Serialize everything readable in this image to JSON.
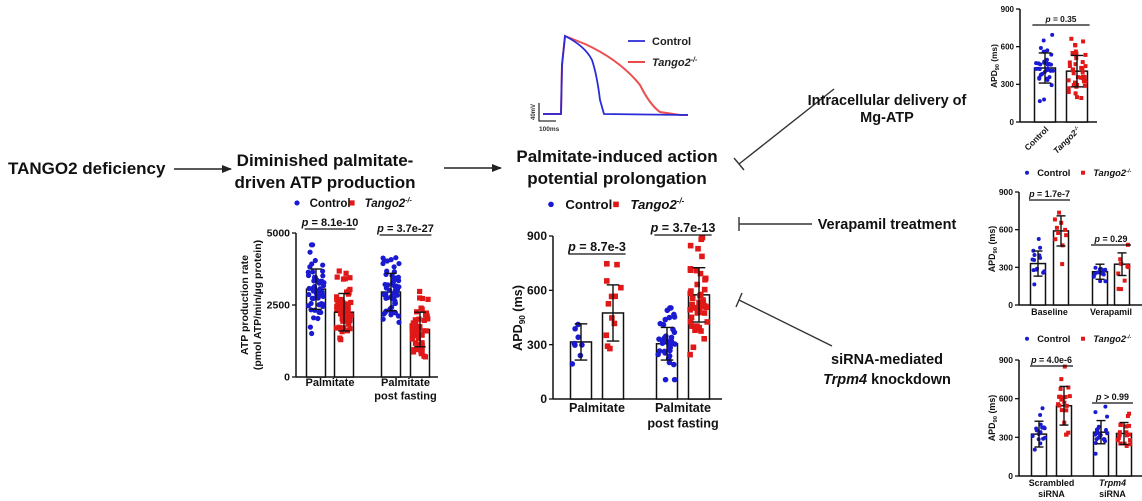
{
  "flow": {
    "step1": "TANGO2 deficiency",
    "step2_line1": "Diminished palmitate-",
    "step2_line2": "driven ATP production",
    "step3_line1": "Palmitate-induced action",
    "step3_line2": "potential prolongation",
    "rescue1_line1": "Intracellular delivery of",
    "rescue1_line2": "Mg-ATP",
    "rescue2": "Verapamil treatment",
    "rescue3_line1": "siRNA-mediated",
    "rescue3_line2_italic": "Trpm4",
    "rescue3_line2_rest": " knockdown"
  },
  "colors": {
    "control": "#1a1ad0",
    "tango2": "#e01818",
    "text": "#111111"
  },
  "legend": {
    "control": "Control",
    "tango2": "Tango2",
    "tango2_sup": "-/-"
  },
  "trace": {
    "legend_control": "Control",
    "legend_tango2": "Tango2",
    "legend_tango2_sup": "-/-",
    "scale_voltage": "40mV",
    "scale_time": "100ms"
  },
  "chart_data": [
    {
      "id": "atp",
      "type": "bar",
      "ylabel_line1": "ATP production rate",
      "ylabel_line2": "(pmol ATP/min/µg protein)",
      "ylim": [
        0,
        5000
      ],
      "yticks": [
        "0",
        "2500",
        "5000"
      ],
      "categories": [
        [
          "Palmitate"
        ],
        [
          "Palmitate",
          "post fasting"
        ]
      ],
      "series": [
        {
          "name": "Control",
          "means": [
            3050,
            2950
          ],
          "sd": [
            700,
            650
          ],
          "n": [
            55,
            55
          ]
        },
        {
          "name": "Tango2-/-",
          "means": [
            2250,
            1650
          ],
          "sd": [
            650,
            600
          ],
          "n": [
            55,
            55
          ]
        }
      ],
      "pvalues": [
        "8.1e-10",
        "3.7e-27"
      ]
    },
    {
      "id": "apd-palmitate",
      "type": "bar",
      "ylabel": "APD",
      "ylabel_sub": "90",
      "ylabel_unit": " (ms)",
      "ylim": [
        0,
        900
      ],
      "yticks": [
        "0",
        "300",
        "600",
        "900"
      ],
      "categories": [
        [
          "Palmitate"
        ],
        [
          "Palmitate",
          "post fasting"
        ]
      ],
      "series": [
        {
          "name": "Control",
          "means": [
            315,
            305
          ],
          "sd": [
            100,
            90
          ],
          "n": [
            8,
            35
          ]
        },
        {
          "name": "Tango2-/-",
          "means": [
            475,
            575
          ],
          "sd": [
            155,
            150
          ],
          "n": [
            12,
            45
          ]
        }
      ],
      "pvalues": [
        "8.7e-3",
        "3.7e-13"
      ]
    },
    {
      "id": "apd-mgatp",
      "type": "bar",
      "ylabel": "APD",
      "ylabel_sub": "90",
      "ylabel_unit": " (ms)",
      "ylim": [
        0,
        900
      ],
      "yticks": [
        "0",
        "300",
        "600",
        "900"
      ],
      "categories": [
        [
          "Control"
        ],
        [
          "Tango2-/-"
        ]
      ],
      "series": [
        {
          "name": "Control",
          "means": [
            430
          ],
          "sd": [
            120
          ],
          "n": [
            35
          ]
        },
        {
          "name": "Tango2-/-",
          "means": [
            405
          ],
          "sd": [
            125
          ],
          "n": [
            40
          ]
        }
      ],
      "pvalues": [
        "0.35"
      ]
    },
    {
      "id": "apd-verapamil",
      "type": "bar",
      "ylabel": "APD",
      "ylabel_sub": "90",
      "ylabel_unit": " (ms)",
      "ylim": [
        0,
        900
      ],
      "yticks": [
        "0",
        "300",
        "600",
        "900"
      ],
      "categories": [
        [
          "Baseline"
        ],
        [
          "Verapamil"
        ]
      ],
      "series": [
        {
          "name": "Control",
          "means": [
            330,
            265
          ],
          "sd": [
            100,
            60
          ],
          "n": [
            14,
            12
          ]
        },
        {
          "name": "Tango2-/-",
          "means": [
            590,
            325
          ],
          "sd": [
            120,
            90
          ],
          "n": [
            10,
            10
          ]
        }
      ],
      "pvalues": [
        "1.7e-7",
        "0.29"
      ]
    },
    {
      "id": "apd-sirna",
      "type": "bar",
      "ylabel": "APD",
      "ylabel_sub": "90",
      "ylabel_unit": " (ms)",
      "ylim": [
        0,
        900
      ],
      "yticks": [
        "0",
        "300",
        "600",
        "900"
      ],
      "categories": [
        [
          "Scrambled",
          "siRNA"
        ],
        [
          "Trpm4",
          "siRNA"
        ]
      ],
      "series": [
        {
          "name": "Control",
          "means": [
            325,
            340
          ],
          "sd": [
            100,
            90
          ],
          "n": [
            16,
            20
          ]
        },
        {
          "name": "Tango2-/-",
          "means": [
            545,
            330
          ],
          "sd": [
            150,
            85
          ],
          "n": [
            20,
            20
          ]
        }
      ],
      "pvalues": [
        "4.0e-6",
        "> 0.99"
      ],
      "pvalue_ops": [
        "=",
        ""
      ]
    }
  ]
}
